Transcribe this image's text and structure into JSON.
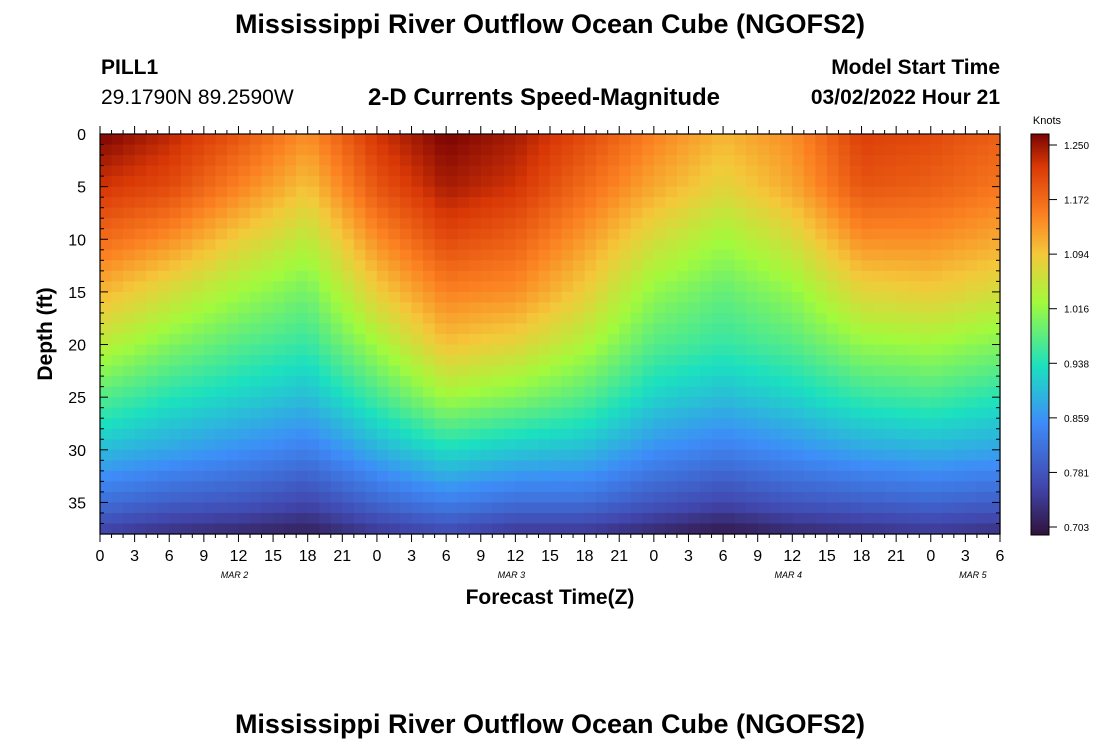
{
  "title": "Mississippi River Outflow Ocean Cube (NGOFS2)",
  "station": {
    "id": "PILL1",
    "coords": "29.1790N  89.2590W"
  },
  "model": {
    "label": "Model Start Time",
    "time": "03/02/2022 Hour 21"
  },
  "chart_data": {
    "type": "heatmap",
    "title": "2-D Currents Speed-Magnitude",
    "xlabel": "Forecast Time(Z)",
    "ylabel": "Depth (ft)",
    "x_ticks": [
      "0",
      "3",
      "6",
      "9",
      "12",
      "15",
      "18",
      "21",
      "0",
      "3",
      "6",
      "9",
      "12",
      "15",
      "18",
      "21",
      "0",
      "3",
      "6",
      "9",
      "12",
      "15",
      "18",
      "21",
      "0",
      "3",
      "6"
    ],
    "date_labels": [
      "MAR 2",
      "MAR 3",
      "MAR 4",
      "MAR 5"
    ],
    "y_ticks": [
      "0",
      "5",
      "10",
      "15",
      "20",
      "25",
      "30",
      "35"
    ],
    "ylim": [
      0,
      38
    ],
    "xlim_hours": [
      0,
      78
    ],
    "colorbar": {
      "unit": "Knots",
      "ticks": [
        "1.250",
        "1.172",
        "1.094",
        "1.016",
        "0.938",
        "0.859",
        "0.781",
        "0.703"
      ],
      "range": [
        0.703,
        1.25
      ]
    },
    "x_hours": [
      0,
      6,
      12,
      18,
      24,
      30,
      36,
      42,
      48,
      54,
      60,
      66,
      72,
      78
    ],
    "depth_ft": [
      0,
      5,
      10,
      15,
      20,
      25,
      30,
      35,
      38
    ],
    "values": [
      [
        1.25,
        1.21,
        1.16,
        1.1,
        1.04,
        0.97,
        0.9,
        0.82,
        0.76
      ],
      [
        1.22,
        1.19,
        1.13,
        1.06,
        1.0,
        0.94,
        0.88,
        0.8,
        0.74
      ],
      [
        1.18,
        1.14,
        1.08,
        1.02,
        0.97,
        0.92,
        0.86,
        0.79,
        0.73
      ],
      [
        1.13,
        1.09,
        1.04,
        0.99,
        0.95,
        0.9,
        0.84,
        0.77,
        0.72
      ],
      [
        1.21,
        1.18,
        1.13,
        1.08,
        1.02,
        0.96,
        0.89,
        0.81,
        0.75
      ],
      [
        1.25,
        1.23,
        1.19,
        1.14,
        1.09,
        1.02,
        0.93,
        0.84,
        0.77
      ],
      [
        1.23,
        1.21,
        1.17,
        1.13,
        1.07,
        1.0,
        0.91,
        0.82,
        0.75
      ],
      [
        1.19,
        1.16,
        1.12,
        1.08,
        1.03,
        0.97,
        0.9,
        0.82,
        0.75
      ],
      [
        1.14,
        1.11,
        1.06,
        1.01,
        0.97,
        0.92,
        0.86,
        0.79,
        0.73
      ],
      [
        1.1,
        1.07,
        1.02,
        0.98,
        0.95,
        0.9,
        0.84,
        0.77,
        0.71
      ],
      [
        1.13,
        1.11,
        1.06,
        1.01,
        0.97,
        0.92,
        0.86,
        0.79,
        0.73
      ],
      [
        1.2,
        1.18,
        1.13,
        1.07,
        1.01,
        0.95,
        0.88,
        0.8,
        0.74
      ],
      [
        1.19,
        1.17,
        1.13,
        1.08,
        1.02,
        0.96,
        0.89,
        0.81,
        0.75
      ],
      [
        1.17,
        1.15,
        1.11,
        1.06,
        1.0,
        0.94,
        0.88,
        0.8,
        0.74
      ]
    ]
  },
  "footer_title": "Mississippi River Outflow Ocean Cube (NGOFS2)"
}
